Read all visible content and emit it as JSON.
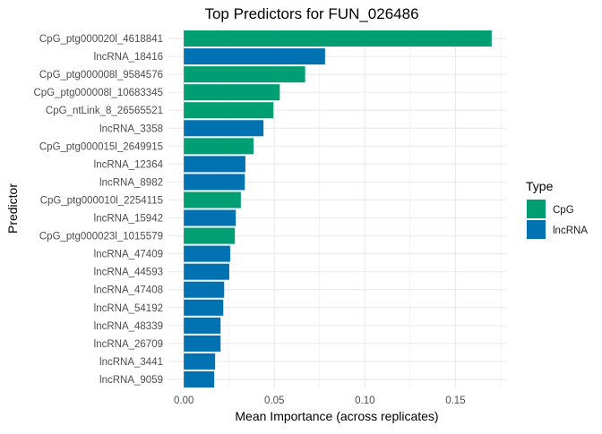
{
  "chart_data": {
    "type": "bar",
    "orientation": "horizontal",
    "title": "Top Predictors for FUN_026486",
    "xlabel": "Mean Importance (across replicates)",
    "ylabel": "Predictor",
    "xlim": [
      -0.0085,
      0.178
    ],
    "xticks": [
      0.0,
      0.05,
      0.1,
      0.15
    ],
    "xtick_labels": [
      "0.00",
      "0.05",
      "0.10",
      "0.15"
    ],
    "grid": true,
    "legend": {
      "title": "Type",
      "placement": "right",
      "entries": [
        {
          "label": "CpG",
          "color": "#009E73"
        },
        {
          "label": "lncRNA",
          "color": "#0072B2"
        }
      ]
    },
    "categories": [
      "CpG_ptg000020l_4618841",
      "lncRNA_18416",
      "CpG_ptg000008l_9584576",
      "CpG_ptg000008l_10683345",
      "CpG_ntLink_8_26565521",
      "lncRNA_3358",
      "CpG_ptg000015l_2649915",
      "lncRNA_12364",
      "lncRNA_8982",
      "CpG_ptg000010l_2254115",
      "lncRNA_15942",
      "CpG_ptg000023l_1015579",
      "lncRNA_47409",
      "lncRNA_44593",
      "lncRNA_47408",
      "lncRNA_54192",
      "lncRNA_48339",
      "lncRNA_26709",
      "lncRNA_3441",
      "lncRNA_9059"
    ],
    "values": [
      0.17,
      0.078,
      0.067,
      0.053,
      0.0495,
      0.044,
      0.0385,
      0.034,
      0.0337,
      0.0315,
      0.0287,
      0.0282,
      0.0256,
      0.0251,
      0.0223,
      0.0218,
      0.0203,
      0.0203,
      0.0173,
      0.0168
    ],
    "types": [
      "CpG",
      "lncRNA",
      "CpG",
      "CpG",
      "CpG",
      "lncRNA",
      "CpG",
      "lncRNA",
      "lncRNA",
      "CpG",
      "lncRNA",
      "CpG",
      "lncRNA",
      "lncRNA",
      "lncRNA",
      "lncRNA",
      "lncRNA",
      "lncRNA",
      "lncRNA",
      "lncRNA"
    ]
  }
}
